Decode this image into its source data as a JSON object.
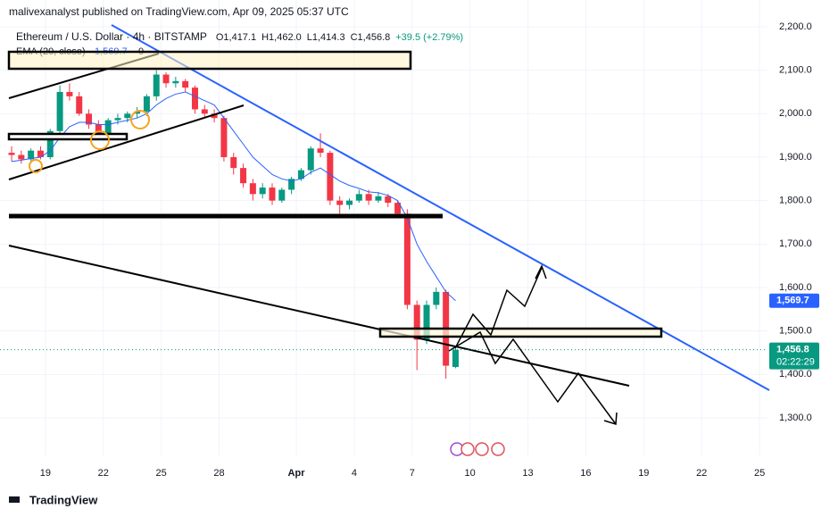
{
  "chart_data": {
    "type": "candlestick",
    "title": "malivexanalyst published on TradingView.com, Apr 09, 2025 05:37 UTC",
    "symbol": "Ethereum / U.S. Dollar · 4h · BITSTAMP",
    "ohlc_labels": [
      "O1,417.1",
      "H1,462.0",
      "L1,414.3",
      "C1,456.8",
      "+39.5 (+2.79%)"
    ],
    "indicator": "EMA (20, close)",
    "indicator_value": "1,569.7",
    "indicator_extra": "0",
    "last_price_label": "1,456.8",
    "countdown": "02:22:29",
    "brand": "TradingView",
    "up_color": "#089981",
    "down_color": "#f23645",
    "grid": true,
    "x": [
      17.25,
      17.75,
      18.25,
      18.75,
      19.25,
      19.75,
      20.25,
      20.75,
      21.25,
      21.75,
      22.25,
      22.75,
      23.25,
      23.75,
      24.25,
      24.75,
      25.25,
      25.75,
      26.25,
      26.75,
      27.25,
      27.75,
      28.25,
      28.75,
      29.25,
      29.75,
      30.25,
      30.75,
      31.25,
      31.75,
      32.25,
      32.75,
      33.25,
      33.75,
      34.25,
      34.75,
      35.25,
      35.75,
      36.25,
      36.75,
      37.25,
      37.75,
      38.25,
      38.75,
      39.25,
      39.75,
      40.25
    ],
    "open": [
      1910,
      1905,
      1895,
      1915,
      1900,
      1960,
      2050,
      2040,
      2000,
      1975,
      1950,
      1985,
      1990,
      2000,
      2005,
      2040,
      2090,
      2070,
      2075,
      2060,
      2010,
      2000,
      1990,
      1900,
      1875,
      1840,
      1815,
      1830,
      1800,
      1825,
      1850,
      1870,
      1920,
      1910,
      1800,
      1790,
      1800,
      1815,
      1800,
      1810,
      1795,
      1770,
      1560,
      1480,
      1560,
      1590,
      1417.1
    ],
    "high": [
      1925,
      1915,
      1920,
      1925,
      1965,
      2065,
      2070,
      2050,
      2010,
      1985,
      1990,
      2000,
      2005,
      2015,
      2045,
      2100,
      2095,
      2085,
      2080,
      2065,
      2020,
      2010,
      1995,
      1910,
      1885,
      1850,
      1840,
      1840,
      1830,
      1855,
      1875,
      1925,
      1955,
      1915,
      1810,
      1805,
      1825,
      1825,
      1820,
      1815,
      1800,
      1780,
      1570,
      1570,
      1600,
      1595,
      1462.0
    ],
    "low": [
      1890,
      1885,
      1885,
      1895,
      1895,
      1950,
      2030,
      1995,
      1965,
      1940,
      1945,
      1975,
      1980,
      1990,
      1995,
      2030,
      2060,
      2060,
      2050,
      2000,
      1990,
      1980,
      1890,
      1860,
      1830,
      1800,
      1805,
      1790,
      1795,
      1815,
      1845,
      1860,
      1900,
      1790,
      1770,
      1780,
      1795,
      1790,
      1795,
      1785,
      1760,
      1550,
      1410,
      1470,
      1550,
      1390,
      1414.3
    ],
    "close": [
      1905,
      1895,
      1915,
      1900,
      1960,
      2050,
      2040,
      2000,
      1975,
      1950,
      1985,
      1990,
      2000,
      2005,
      2040,
      2090,
      2070,
      2075,
      2060,
      2010,
      2000,
      1990,
      1900,
      1875,
      1840,
      1815,
      1830,
      1800,
      1825,
      1850,
      1870,
      1920,
      1910,
      1800,
      1790,
      1800,
      1815,
      1800,
      1810,
      1795,
      1770,
      1560,
      1480,
      1560,
      1590,
      1420,
      1456.8
    ],
    "series": [
      {
        "name": "EMA (20, close)",
        "color": "#2962ff",
        "values": [
          1890,
          1893,
          1897,
          1900,
          1915,
          1945,
          1970,
          1980,
          1980,
          1975,
          1975,
          1980,
          1985,
          1990,
          2000,
          2020,
          2035,
          2045,
          2050,
          2040,
          2030,
          2020,
          1990,
          1960,
          1930,
          1900,
          1880,
          1860,
          1850,
          1845,
          1850,
          1865,
          1875,
          1860,
          1845,
          1835,
          1828,
          1820,
          1818,
          1812,
          1800,
          1760,
          1700,
          1660,
          1625,
          1590,
          1569.7
        ]
      }
    ],
    "xlim": [
      17.11,
      56.32
    ],
    "xticks": [
      19,
      22,
      25,
      28,
      {
        "value": 32,
        "label": "Apr"
      },
      {
        "value": 35,
        "label": "4"
      },
      {
        "value": 38,
        "label": "7"
      },
      {
        "value": 41,
        "label": "10"
      },
      {
        "value": 44,
        "label": "13"
      },
      {
        "value": 47,
        "label": "16"
      },
      {
        "value": 50,
        "label": "19"
      },
      {
        "value": 53,
        "label": "22"
      },
      {
        "value": 56,
        "label": "25"
      }
    ],
    "ylim": [
      1213.7,
      2261.6
    ],
    "yticks": [
      {
        "value": 1300,
        "label": "1,300.0"
      },
      {
        "value": 1400,
        "label": "1,400.0"
      },
      {
        "value": 1500,
        "label": "1,500.0"
      },
      {
        "value": 1600,
        "label": "1,600.0"
      },
      {
        "value": 1700,
        "label": "1,700.0"
      },
      {
        "value": 1800,
        "label": "1,800.0"
      },
      {
        "value": 1900,
        "label": "1,900.0"
      },
      {
        "value": 2000,
        "label": "2,000.0"
      },
      {
        "value": 2100,
        "label": "2,100.0"
      },
      {
        "value": 2200,
        "label": "2,200.0"
      }
    ]
  }
}
